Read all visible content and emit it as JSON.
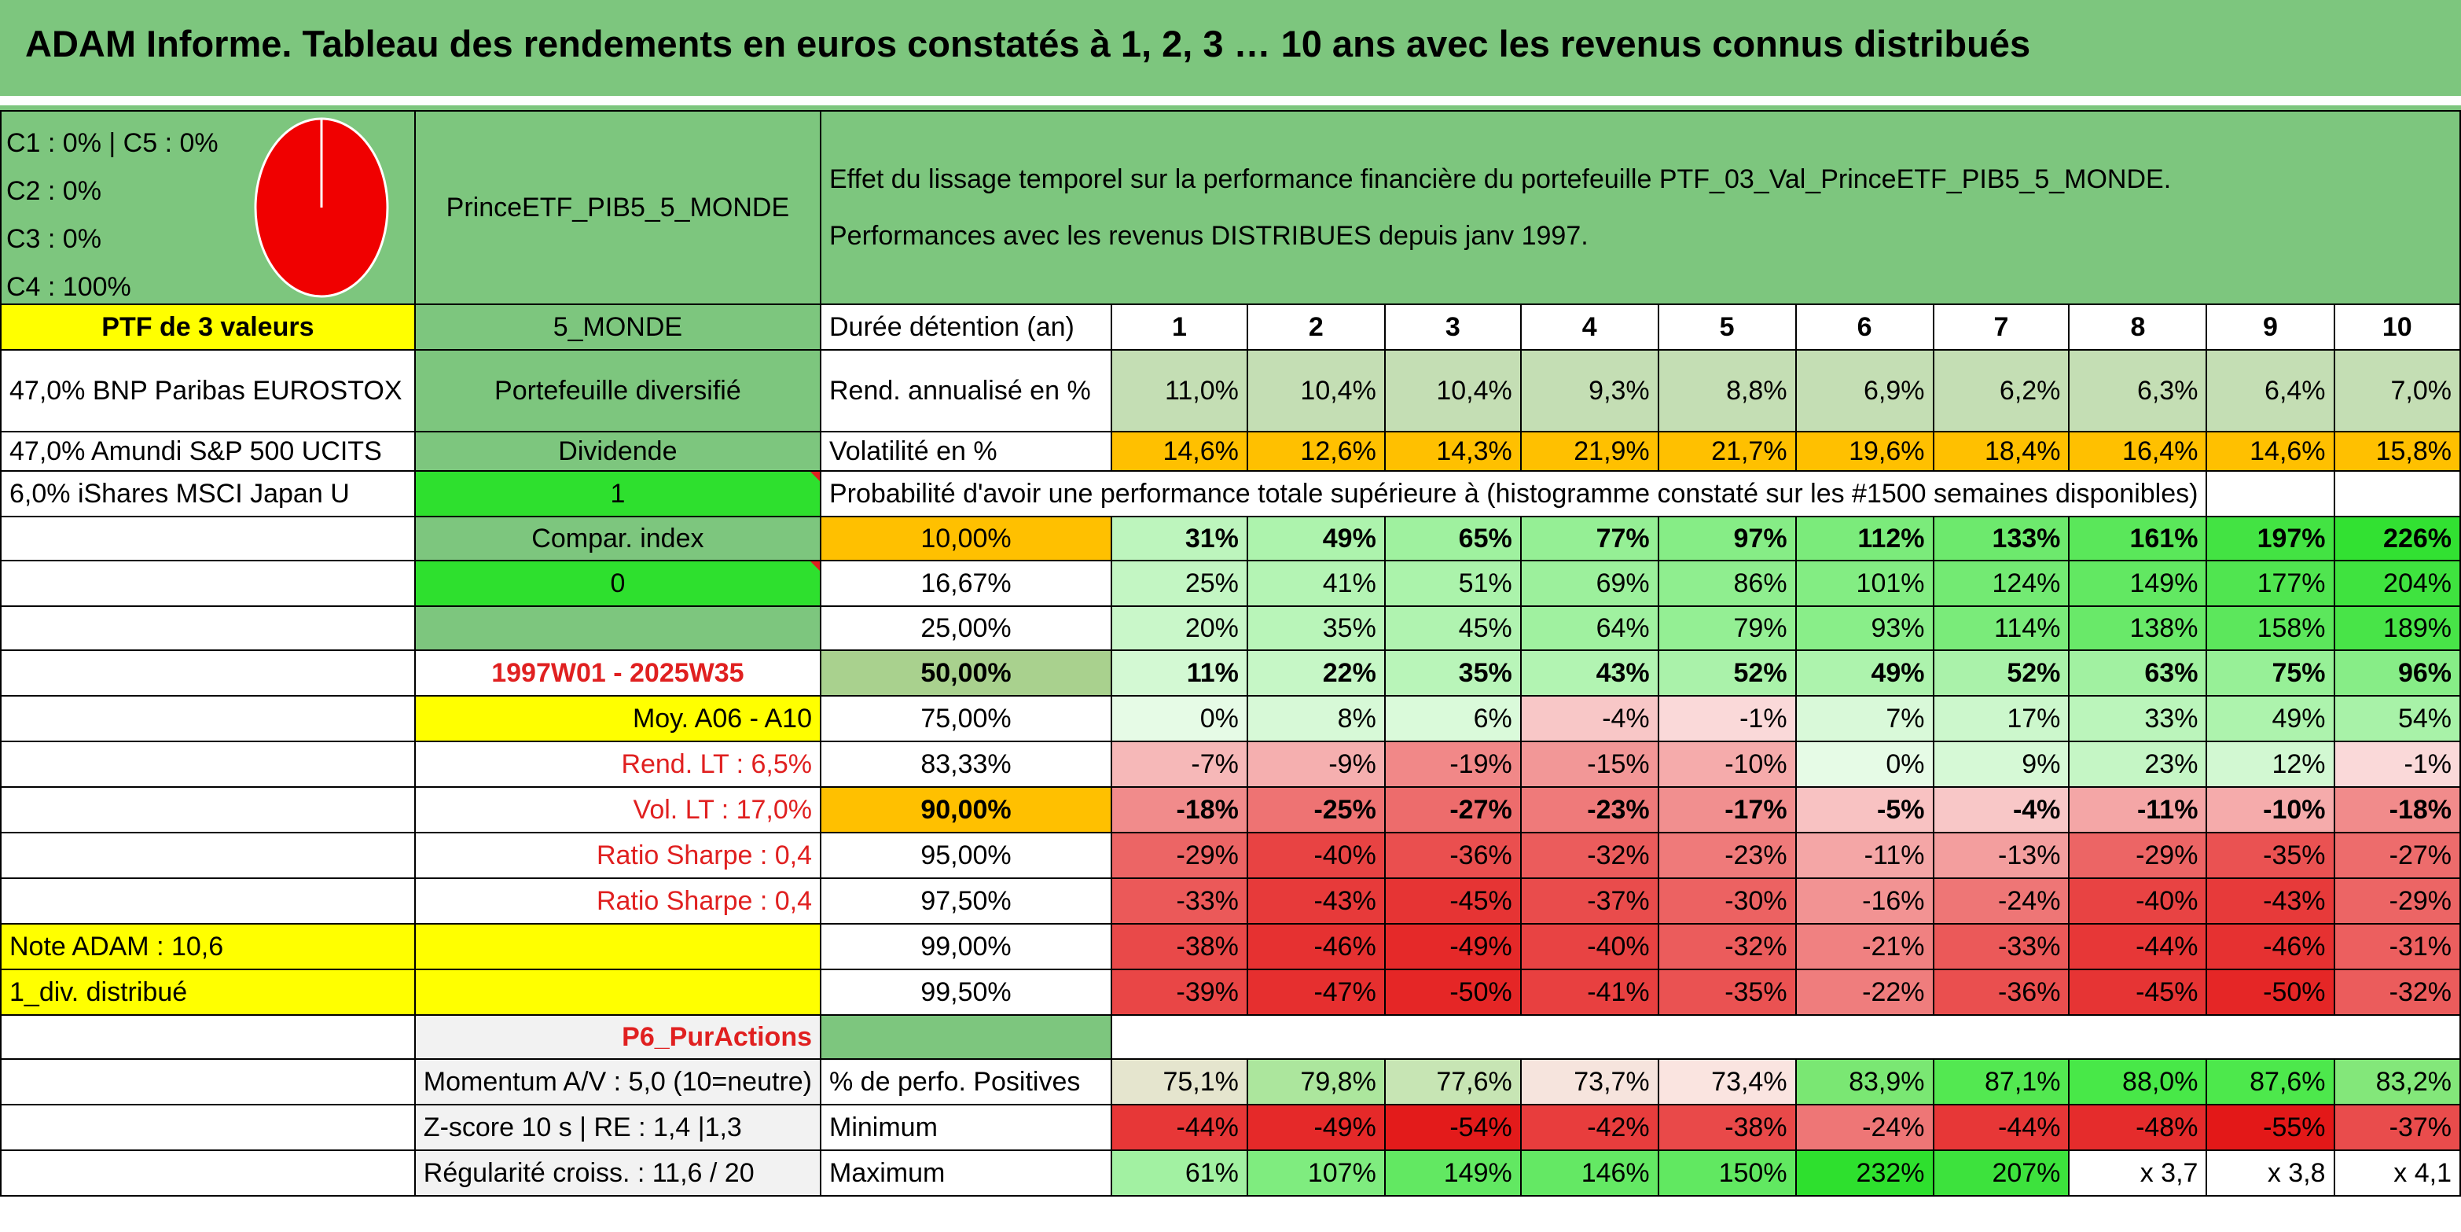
{
  "header": {
    "title": "ADAM Informe. Tableau des rendements en euros constatés à 1, 2, 3 … 10 ans avec les revenus connus distribués"
  },
  "composition": {
    "lines": [
      "C1 : 0% | C5 : 0%",
      "C2 : 0%",
      "C3 : 0%",
      "C4 : 100%"
    ],
    "pie_fraction_c4": 1.0,
    "pie_color": "#F00000"
  },
  "portfolio": {
    "name": "PrinceETF_PIB5_5_MONDE",
    "description_line1": "Effet du lissage temporel sur la performance financière du portefeuille PTF_03_Val_PrinceETF_PIB5_5_MONDE.",
    "description_line2": "Performances avec les revenus DISTRIBUES depuis janv 1997."
  },
  "left_column": [
    "PTF de 3 valeurs",
    "47,0% BNP Paribas EUROSTOX",
    "47,0% Amundi S&P 500 UCITS",
    "6,0% iShares MSCI Japan U"
  ],
  "mid_column": {
    "zone": "5_MONDE",
    "type": "Portefeuille diversifié",
    "revenue": "Dividende",
    "flag1": "1",
    "compar": "Compar. index",
    "flag0": "0",
    "period": "1997W01 - 2025W35",
    "moy": "Moy. A06 - A10",
    "rend_lt": "Rend. LT : 6,5%",
    "vol_lt": "Vol. LT : 17,0%",
    "sharpe": "Ratio Sharpe : 0,4",
    "note": "Note ADAM : 10,6",
    "div": "1_div. distribué",
    "strategy": "P6_PurActions",
    "momentum": "Momentum A/V : 5,0 (10=neutre)",
    "zscore": "Z-score 10 s | RE : 1,4 |1,3",
    "regularite": "Régularité croiss. : 11,6 / 20"
  },
  "table": {
    "duration_label": "Durée détention (an)",
    "years": [
      "1",
      "2",
      "3",
      "4",
      "5",
      "6",
      "7",
      "8",
      "9",
      "10"
    ],
    "rend_label": "Rend. annualisé en %",
    "rend": [
      "11,0%",
      "10,4%",
      "10,4%",
      "9,3%",
      "8,8%",
      "6,9%",
      "6,2%",
      "6,3%",
      "6,4%",
      "7,0%"
    ],
    "vol_label": "Volatilité en %",
    "vol": [
      "14,6%",
      "12,6%",
      "14,3%",
      "21,9%",
      "21,7%",
      "19,6%",
      "18,4%",
      "16,4%",
      "14,6%",
      "15,8%"
    ],
    "prob_title": "Probabilité d'avoir une performance totale supérieure à (histogramme constaté sur les #1500 semaines disponibles)",
    "quantiles": [
      {
        "p": "10,00%",
        "v": [
          "31%",
          "49%",
          "65%",
          "77%",
          "97%",
          "112%",
          "133%",
          "161%",
          "197%",
          "226%"
        ]
      },
      {
        "p": "16,67%",
        "v": [
          "25%",
          "41%",
          "51%",
          "69%",
          "86%",
          "101%",
          "124%",
          "149%",
          "177%",
          "204%"
        ]
      },
      {
        "p": "25,00%",
        "v": [
          "20%",
          "35%",
          "45%",
          "64%",
          "79%",
          "93%",
          "114%",
          "138%",
          "158%",
          "189%"
        ]
      },
      {
        "p": "50,00%",
        "v": [
          "11%",
          "22%",
          "35%",
          "43%",
          "52%",
          "49%",
          "52%",
          "63%",
          "75%",
          "96%"
        ]
      },
      {
        "p": "75,00%",
        "v": [
          "0%",
          "8%",
          "6%",
          "-4%",
          "-1%",
          "7%",
          "17%",
          "33%",
          "49%",
          "54%"
        ]
      },
      {
        "p": "83,33%",
        "v": [
          "-7%",
          "-9%",
          "-19%",
          "-15%",
          "-10%",
          "0%",
          "9%",
          "23%",
          "12%",
          "-1%"
        ]
      },
      {
        "p": "90,00%",
        "v": [
          "-18%",
          "-25%",
          "-27%",
          "-23%",
          "-17%",
          "-5%",
          "-4%",
          "-11%",
          "-10%",
          "-18%"
        ]
      },
      {
        "p": "95,00%",
        "v": [
          "-29%",
          "-40%",
          "-36%",
          "-32%",
          "-23%",
          "-11%",
          "-13%",
          "-29%",
          "-35%",
          "-27%"
        ]
      },
      {
        "p": "97,50%",
        "v": [
          "-33%",
          "-43%",
          "-45%",
          "-37%",
          "-30%",
          "-16%",
          "-24%",
          "-40%",
          "-43%",
          "-29%"
        ]
      },
      {
        "p": "99,00%",
        "v": [
          "-38%",
          "-46%",
          "-49%",
          "-40%",
          "-32%",
          "-21%",
          "-33%",
          "-44%",
          "-46%",
          "-31%"
        ]
      },
      {
        "p": "99,50%",
        "v": [
          "-39%",
          "-47%",
          "-50%",
          "-41%",
          "-35%",
          "-22%",
          "-36%",
          "-45%",
          "-50%",
          "-32%"
        ]
      }
    ],
    "pos_label": "% de perfo. Positives",
    "pos": [
      "75,1%",
      "79,8%",
      "77,6%",
      "73,7%",
      "73,4%",
      "83,9%",
      "87,1%",
      "88,0%",
      "87,6%",
      "83,2%"
    ],
    "min_label": "Minimum",
    "min": [
      "-44%",
      "-49%",
      "-54%",
      "-42%",
      "-38%",
      "-24%",
      "-44%",
      "-48%",
      "-55%",
      "-37%"
    ],
    "max_label": "Maximum",
    "max": [
      "61%",
      "107%",
      "149%",
      "146%",
      "150%",
      "232%",
      "207%",
      "x 3,7",
      "x 3,8",
      "x 4,1"
    ]
  },
  "colors": {
    "header_green": "#7DC67E",
    "yellow": "#FFFF00",
    "bright_green": "#2EE02E",
    "orange": "#FFC000",
    "rend_green": "#C4DEB4",
    "light_gray": "#F2F2F2",
    "red_text": "#E02020"
  }
}
